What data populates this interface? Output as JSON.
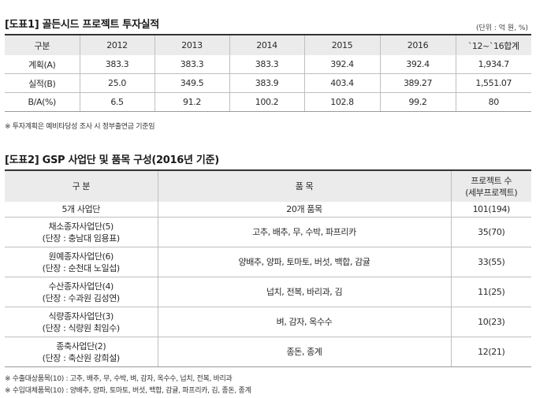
{
  "table1": {
    "title": "[도표1] 골든시드 프로젝트 투자실적",
    "unit": "(단위 : 억 원, %)",
    "headers": [
      "구분",
      "2012",
      "2013",
      "2014",
      "2015",
      "2016",
      "`12~`16합계"
    ],
    "rows": [
      [
        "계획(A)",
        "383.3",
        "383.3",
        "383.3",
        "392.4",
        "392.4",
        "1,934.7"
      ],
      [
        "실적(B)",
        "25.0",
        "349.5",
        "383.9",
        "403.4",
        "389.27",
        "1,551.07"
      ],
      [
        "B/A(%)",
        "6.5",
        "91.2",
        "100.2",
        "102.8",
        "99.2",
        "80"
      ]
    ],
    "note": "※ 투자계획은 예비타당성 조사 시 정부출연금 기준임"
  },
  "table2": {
    "title": "[도표2] GSP 사업단 및 품목 구성(2016년 기준)",
    "headers": {
      "col1": "구 분",
      "col2": "품 목",
      "col3_line1": "프로젝트 수",
      "col3_line2": "(세부프로젝트)"
    },
    "total_row": [
      "5개 사업단",
      "20개 품목",
      "101(194)"
    ],
    "rows": [
      {
        "name": "채소종자사업단(5)",
        "leader": "(단장 : 충남대 임용표)",
        "items": "고추, 배추, 무, 수박, 파프리카",
        "count": "35(70)"
      },
      {
        "name": "원예종자사업단(6)",
        "leader": "(단장 : 순천대 노일섭)",
        "items": "양배추, 양파, 토마토, 버섯, 백합, 감귤",
        "count": "33(55)"
      },
      {
        "name": "수산종자사업단(4)",
        "leader": "(단장 : 수과원 김성연)",
        "items": "넙치, 전복, 바리과, 김",
        "count": "11(25)"
      },
      {
        "name": "식량종자사업단(3)",
        "leader": "(단장 : 식량원 최임수)",
        "items": "벼, 감자, 옥수수",
        "count": "10(23)"
      },
      {
        "name": "종축사업단(2)",
        "leader": "(단장 : 축산원 강희설)",
        "items": "종돈, 종계",
        "count": "12(21)"
      }
    ],
    "notes": [
      "※ 수출대상품목(10) : 고추, 배추, 무, 수박, 벼, 감자, 옥수수, 넙치, 전복, 바리과",
      "※ 수입대체품목(10) : 양배추, 양파, 토마토, 버섯, 백합, 감귤, 파프리카, 김, 종돈, 종계"
    ]
  }
}
